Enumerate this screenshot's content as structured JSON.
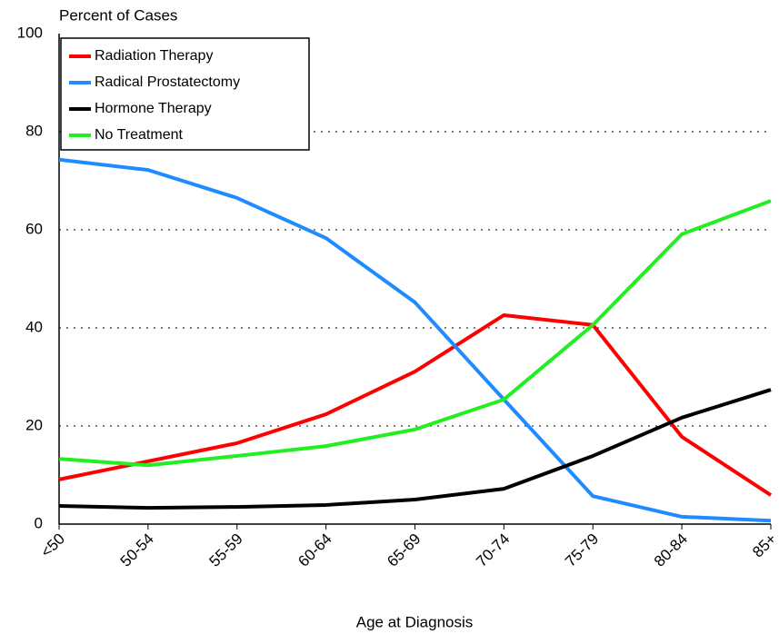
{
  "chart_data": {
    "type": "line",
    "y_label": "Percent of Cases",
    "x_label": "Age at Diagnosis",
    "categories": [
      "<50",
      "50-54",
      "55-59",
      "60-64",
      "65-69",
      "70-74",
      "75-79",
      "80-84",
      "85+"
    ],
    "series": [
      {
        "name": "Radiation Therapy",
        "color": "#ff0000",
        "values": [
          9.1,
          12.8,
          16.5,
          22.4,
          31.1,
          42.6,
          40.6,
          17.8,
          5.9
        ]
      },
      {
        "name": "Radical Prostatectomy",
        "color": "#1e8cff",
        "values": [
          74.3,
          72.2,
          66.5,
          58.3,
          45.2,
          25.4,
          5.7,
          1.5,
          0.7
        ]
      },
      {
        "name": "Hormone Therapy",
        "color": "#000000",
        "values": [
          3.7,
          3.3,
          3.5,
          3.9,
          5.0,
          7.2,
          13.9,
          21.7,
          27.4
        ]
      },
      {
        "name": "No Treatment",
        "color": "#22ee22",
        "values": [
          13.3,
          12.0,
          13.9,
          15.9,
          19.3,
          25.4,
          40.6,
          59.1,
          65.9
        ]
      }
    ],
    "ylim": [
      0,
      100
    ],
    "yticks": [
      0,
      20,
      40,
      60,
      80,
      100
    ],
    "grid": true,
    "legend": "upper left"
  }
}
